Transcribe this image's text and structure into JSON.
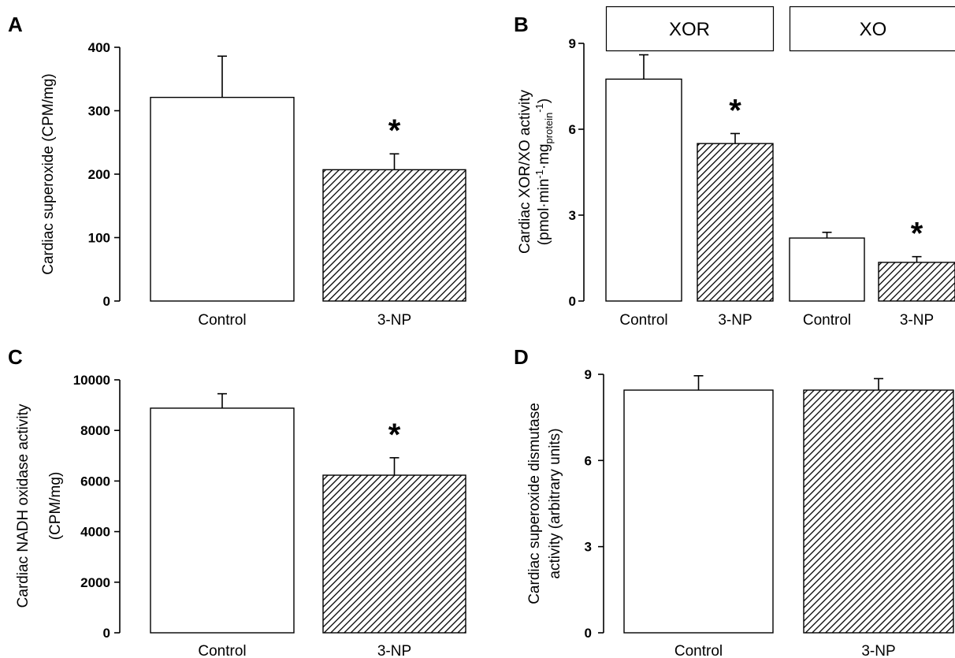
{
  "colors": {
    "bar_fill_control": "#ffffff",
    "bar_stroke": "#000000",
    "hatch": "#000000"
  },
  "chart_data": [
    {
      "panel": "A",
      "type": "bar",
      "categories": [
        "Control",
        "3-NP"
      ],
      "values": [
        321,
        207
      ],
      "errors": [
        65,
        25
      ],
      "significant": [
        "",
        "*"
      ],
      "ylabel": "Cardiac superoxide (CPM/mg)",
      "ylabel_lines": [
        "Cardiac superoxide (CPM/mg)"
      ],
      "yticks": [
        "0",
        "100",
        "200",
        "300",
        "400"
      ],
      "ylim": [
        0,
        400
      ],
      "grid": false
    },
    {
      "panel": "B",
      "type": "bar",
      "groups": [
        "XOR",
        "XO"
      ],
      "categories": [
        "Control",
        "3-NP",
        "Control",
        "3-NP"
      ],
      "values": [
        7.75,
        5.5,
        2.2,
        1.35
      ],
      "errors": [
        0.85,
        0.35,
        0.2,
        0.2
      ],
      "significant": [
        "",
        "*",
        "",
        "*"
      ],
      "ylabel": "Cardiac XOR/XO activity (pmol·min-1·mgprotein-1)",
      "ylabel_lines": [
        "Cardiac XOR/XO activity",
        "(pmol·min-1·mgprotein-1)"
      ],
      "yticks": [
        "0",
        "3",
        "6",
        "9"
      ],
      "ylim": [
        0,
        9
      ],
      "grid": false
    },
    {
      "panel": "C",
      "type": "bar",
      "categories": [
        "Control",
        "3-NP"
      ],
      "values": [
        8880,
        6230
      ],
      "errors": [
        570,
        690
      ],
      "significant": [
        "",
        "*"
      ],
      "ylabel": "Cardiac NADH oxidase activity (CPM/mg)",
      "ylabel_lines": [
        "Cardiac NADH oxidase activity",
        "(CPM/mg)"
      ],
      "yticks": [
        "0",
        "2000",
        "4000",
        "6000",
        "8000",
        "10000"
      ],
      "ylim": [
        0,
        10000
      ],
      "grid": false
    },
    {
      "panel": "D",
      "type": "bar",
      "categories": [
        "Control",
        "3-NP"
      ],
      "values": [
        8.45,
        8.45
      ],
      "errors": [
        0.5,
        0.4
      ],
      "significant": [
        "",
        ""
      ],
      "ylabel": "Cardiac superoxide dismutase activity (arbitrary units)",
      "ylabel_lines": [
        "Cardiac superoxide dismutase",
        "activity (arbitrary units)"
      ],
      "yticks": [
        "0",
        "3",
        "6",
        "9"
      ],
      "ylim": [
        0,
        9
      ],
      "grid": false
    }
  ]
}
